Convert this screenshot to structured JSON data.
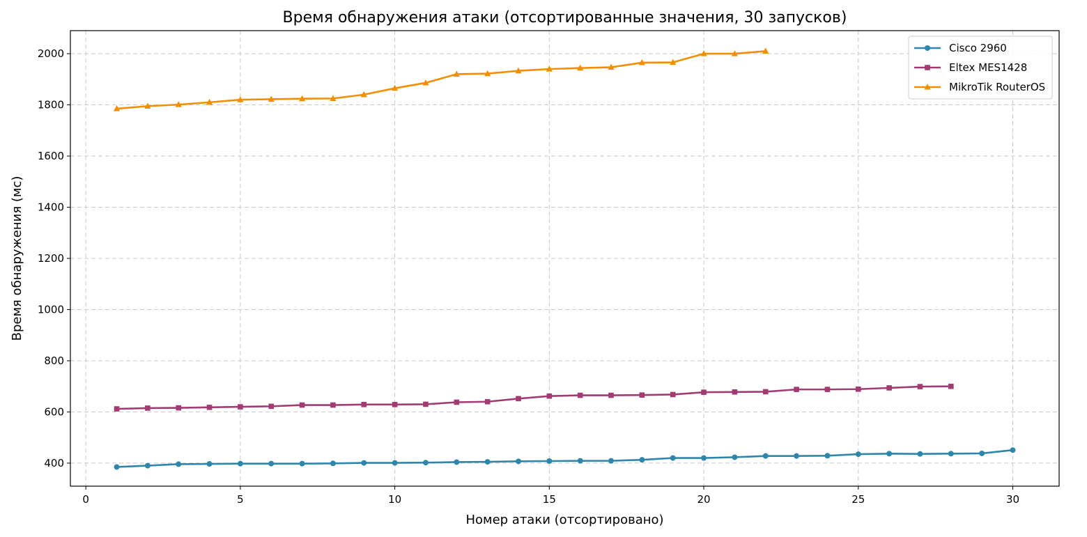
{
  "chart_data": {
    "type": "line",
    "title": "Время обнаружения атаки (отсортированные значения, 30 запусков)",
    "xlabel": "Номер атаки (отсортировано)",
    "ylabel": "Время обнаружения (мс)",
    "xlim": [
      -0.5,
      31.5
    ],
    "ylim": [
      310,
      2090
    ],
    "xticks": [
      0,
      5,
      10,
      15,
      20,
      25,
      30
    ],
    "yticks": [
      400,
      600,
      800,
      1000,
      1200,
      1400,
      1600,
      1800,
      2000
    ],
    "grid": true,
    "legend_position": "top-right",
    "series": [
      {
        "name": "Cisco 2960",
        "color": "#2e86ab",
        "marker": "circle",
        "x": [
          1,
          2,
          3,
          4,
          5,
          6,
          7,
          8,
          9,
          10,
          11,
          12,
          13,
          14,
          15,
          16,
          17,
          18,
          19,
          20,
          21,
          22,
          23,
          24,
          25,
          26,
          27,
          28,
          29,
          30
        ],
        "values": [
          385,
          390,
          396,
          397,
          398,
          398,
          398,
          399,
          401,
          401,
          402,
          404,
          405,
          407,
          408,
          409,
          409,
          413,
          420,
          420,
          423,
          428,
          428,
          429,
          435,
          437,
          436,
          437,
          438,
          451
        ]
      },
      {
        "name": "Eltex MES1428",
        "color": "#a23b72",
        "marker": "square",
        "x": [
          1,
          2,
          3,
          4,
          5,
          6,
          7,
          8,
          9,
          10,
          11,
          12,
          13,
          14,
          15,
          16,
          17,
          18,
          19,
          20,
          21,
          22,
          23,
          24,
          25,
          26,
          27,
          28
        ],
        "values": [
          612,
          615,
          616,
          618,
          620,
          622,
          627,
          627,
          629,
          629,
          630,
          638,
          640,
          652,
          662,
          665,
          665,
          666,
          668,
          677,
          678,
          679,
          688,
          688,
          689,
          694,
          699,
          700
        ]
      },
      {
        "name": "MikroTik RouterOS",
        "color": "#f18f01",
        "marker": "triangle",
        "x": [
          1,
          2,
          3,
          4,
          5,
          6,
          7,
          8,
          9,
          10,
          11,
          12,
          13,
          14,
          15,
          16,
          17,
          18,
          19,
          20,
          21,
          22
        ],
        "values": [
          1785,
          1795,
          1801,
          1810,
          1820,
          1822,
          1824,
          1825,
          1840,
          1865,
          1886,
          1920,
          1922,
          1933,
          1940,
          1944,
          1947,
          1965,
          1966,
          2000,
          2000,
          2010
        ]
      }
    ]
  }
}
